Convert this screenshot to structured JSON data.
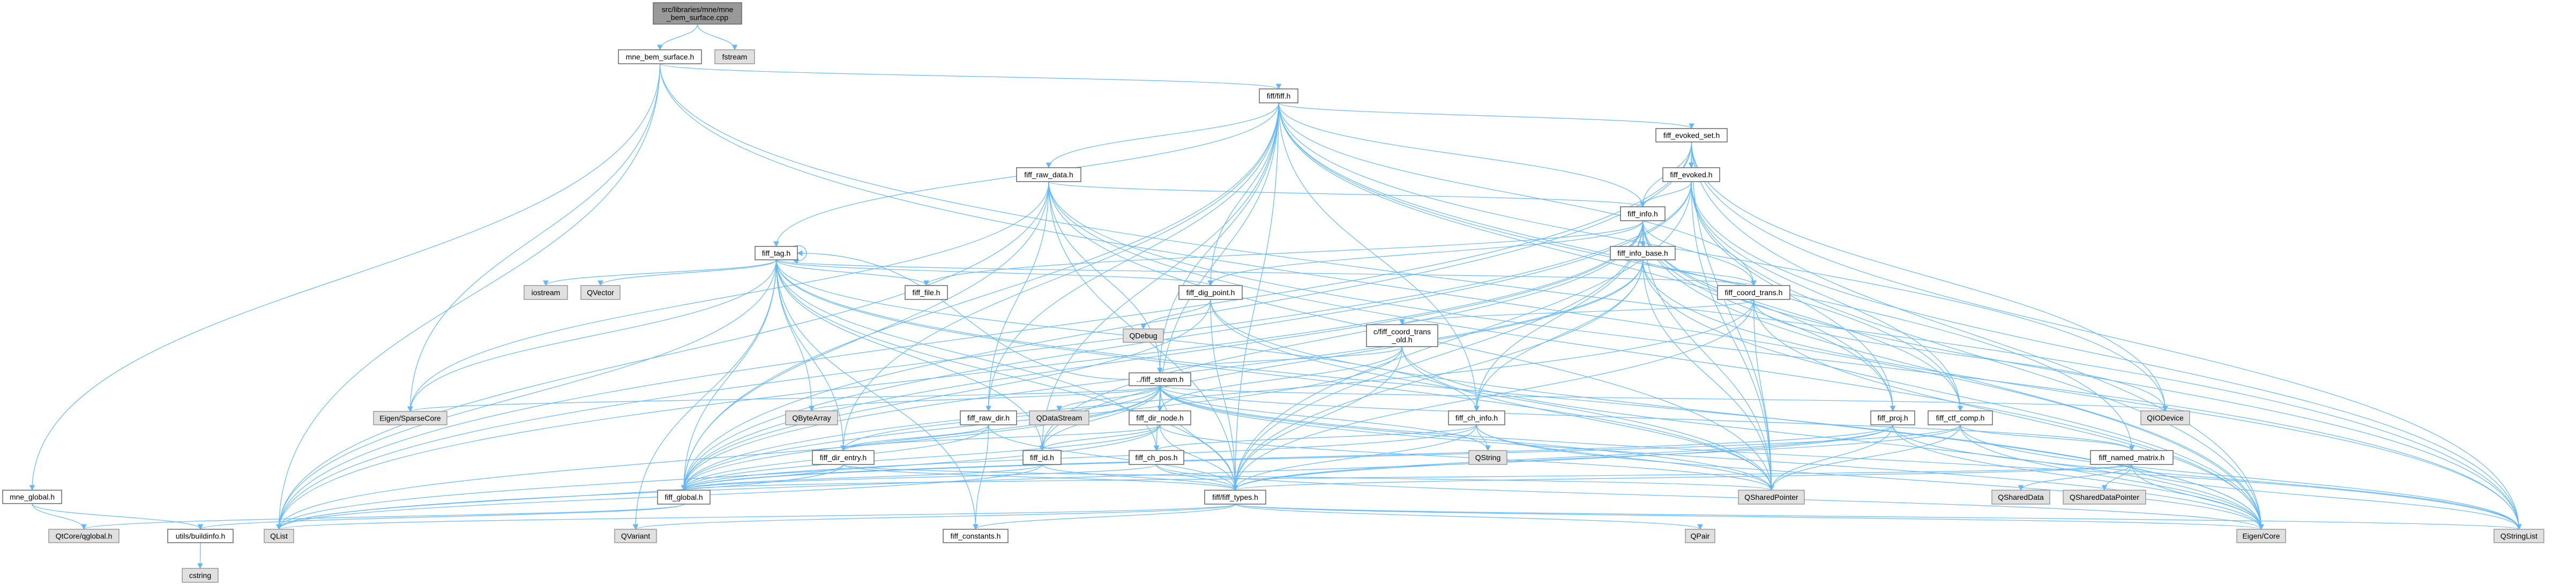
{
  "graph": {
    "edge_color": "#63b8ff",
    "node_styles": {
      "root": {
        "fill": "#999999",
        "stroke": "#666666"
      },
      "internal": {
        "fill": "#ffffff",
        "stroke": "#666666"
      },
      "external": {
        "fill": "#e0e0e0",
        "stroke": "#999999"
      }
    },
    "nodes": [
      {
        "id": "root",
        "kind": "root",
        "lines": [
          "src/libraries/mne/mne",
          "_bem_surface.cpp"
        ]
      },
      {
        "id": "mbs",
        "kind": "internal",
        "lines": [
          "mne_bem_surface.h"
        ]
      },
      {
        "id": "fstream",
        "kind": "external",
        "lines": [
          "fstream"
        ]
      },
      {
        "id": "fiff",
        "kind": "internal",
        "lines": [
          "fiff/fiff.h"
        ]
      },
      {
        "id": "mne_global",
        "kind": "internal",
        "lines": [
          "mne_global.h"
        ]
      },
      {
        "id": "evoked_set",
        "kind": "internal",
        "lines": [
          "fiff_evoked_set.h"
        ]
      },
      {
        "id": "raw_data",
        "kind": "internal",
        "lines": [
          "fiff_raw_data.h"
        ]
      },
      {
        "id": "evoked",
        "kind": "internal",
        "lines": [
          "fiff_evoked.h"
        ]
      },
      {
        "id": "info",
        "kind": "internal",
        "lines": [
          "fiff_info.h"
        ]
      },
      {
        "id": "tag",
        "kind": "internal",
        "lines": [
          "fiff_tag.h"
        ]
      },
      {
        "id": "info_base",
        "kind": "internal",
        "lines": [
          "fiff_info_base.h"
        ]
      },
      {
        "id": "iostream",
        "kind": "external",
        "lines": [
          "iostream"
        ]
      },
      {
        "id": "QVector",
        "kind": "external",
        "lines": [
          "QVector"
        ]
      },
      {
        "id": "file",
        "kind": "internal",
        "lines": [
          "fiff_file.h"
        ]
      },
      {
        "id": "dig_point",
        "kind": "internal",
        "lines": [
          "fiff_dig_point.h"
        ]
      },
      {
        "id": "coord_trans",
        "kind": "internal",
        "lines": [
          "fiff_coord_trans.h"
        ]
      },
      {
        "id": "QDebug",
        "kind": "external",
        "lines": [
          "QDebug"
        ]
      },
      {
        "id": "coord_trans_old",
        "kind": "internal",
        "lines": [
          "c/fiff_coord_trans",
          "_old.h"
        ]
      },
      {
        "id": "stream",
        "kind": "internal",
        "lines": [
          "../fiff_stream.h"
        ]
      },
      {
        "id": "SparseCore",
        "kind": "external",
        "lines": [
          "Eigen/SparseCore"
        ]
      },
      {
        "id": "QByteArray",
        "kind": "external",
        "lines": [
          "QByteArray"
        ]
      },
      {
        "id": "raw_dir",
        "kind": "internal",
        "lines": [
          "fiff_raw_dir.h"
        ]
      },
      {
        "id": "QDataStream",
        "kind": "external",
        "lines": [
          "QDataStream"
        ]
      },
      {
        "id": "dir_node",
        "kind": "internal",
        "lines": [
          "fiff_dir_node.h"
        ]
      },
      {
        "id": "ch_info",
        "kind": "internal",
        "lines": [
          "fiff_ch_info.h"
        ]
      },
      {
        "id": "proj",
        "kind": "internal",
        "lines": [
          "fiff_proj.h"
        ]
      },
      {
        "id": "ctf_comp",
        "kind": "internal",
        "lines": [
          "fiff_ctf_comp.h"
        ]
      },
      {
        "id": "QIODevice",
        "kind": "external",
        "lines": [
          "QIODevice"
        ]
      },
      {
        "id": "dir_entry",
        "kind": "internal",
        "lines": [
          "fiff_dir_entry.h"
        ]
      },
      {
        "id": "id",
        "kind": "internal",
        "lines": [
          "fiff_id.h"
        ]
      },
      {
        "id": "ch_pos",
        "kind": "internal",
        "lines": [
          "fiff_ch_pos.h"
        ]
      },
      {
        "id": "QString",
        "kind": "external",
        "lines": [
          "QString"
        ]
      },
      {
        "id": "named_matrix",
        "kind": "internal",
        "lines": [
          "fiff_named_matrix.h"
        ]
      },
      {
        "id": "global",
        "kind": "internal",
        "lines": [
          "fiff_global.h"
        ]
      },
      {
        "id": "types",
        "kind": "internal",
        "lines": [
          "fiff/fiff_types.h"
        ]
      },
      {
        "id": "QSharedPointer",
        "kind": "external",
        "lines": [
          "QSharedPointer"
        ]
      },
      {
        "id": "QSharedData",
        "kind": "external",
        "lines": [
          "QSharedData"
        ]
      },
      {
        "id": "QSharedDataPointer",
        "kind": "external",
        "lines": [
          "QSharedDataPointer"
        ]
      },
      {
        "id": "qglobal",
        "kind": "external",
        "lines": [
          "QtCore/qglobal.h"
        ]
      },
      {
        "id": "buildinfo",
        "kind": "internal",
        "lines": [
          "utils/buildinfo.h"
        ]
      },
      {
        "id": "QList",
        "kind": "external",
        "lines": [
          "QList"
        ]
      },
      {
        "id": "QVariant",
        "kind": "external",
        "lines": [
          "QVariant"
        ]
      },
      {
        "id": "constants",
        "kind": "internal",
        "lines": [
          "fiff_constants.h"
        ]
      },
      {
        "id": "QPair",
        "kind": "external",
        "lines": [
          "QPair"
        ]
      },
      {
        "id": "EigenCore",
        "kind": "external",
        "lines": [
          "Eigen/Core"
        ]
      },
      {
        "id": "QStringList",
        "kind": "external",
        "lines": [
          "QStringList"
        ]
      },
      {
        "id": "cstring",
        "kind": "external",
        "lines": [
          "cstring"
        ]
      }
    ],
    "edges": [
      [
        "root",
        "mbs"
      ],
      [
        "root",
        "fstream"
      ],
      [
        "mbs",
        "fiff"
      ],
      [
        "mbs",
        "mne_global"
      ],
      [
        "mbs",
        "SparseCore"
      ],
      [
        "mbs",
        "EigenCore"
      ],
      [
        "mbs",
        "QList"
      ],
      [
        "mbs",
        "QStringList"
      ],
      [
        "mne_global",
        "qglobal"
      ],
      [
        "mne_global",
        "buildinfo"
      ],
      [
        "buildinfo",
        "cstring"
      ],
      [
        "fiff",
        "global"
      ],
      [
        "fiff",
        "raw_data"
      ],
      [
        "fiff",
        "evoked_set"
      ],
      [
        "fiff",
        "info"
      ],
      [
        "fiff",
        "tag"
      ],
      [
        "fiff",
        "stream"
      ],
      [
        "fiff",
        "dir_node"
      ],
      [
        "fiff",
        "coord_trans"
      ],
      [
        "fiff",
        "proj"
      ],
      [
        "fiff",
        "ctf_comp"
      ],
      [
        "fiff",
        "named_matrix"
      ],
      [
        "fiff",
        "types"
      ],
      [
        "fiff",
        "id"
      ],
      [
        "fiff",
        "ch_info"
      ],
      [
        "fiff",
        "dig_point"
      ],
      [
        "fiff",
        "raw_dir"
      ],
      [
        "fiff",
        "dir_entry"
      ],
      [
        "fiff",
        "QIODevice"
      ],
      [
        "evoked_set",
        "evoked"
      ],
      [
        "evoked_set",
        "info"
      ],
      [
        "evoked_set",
        "global"
      ],
      [
        "evoked_set",
        "QList"
      ],
      [
        "evoked_set",
        "QStringList"
      ],
      [
        "evoked_set",
        "EigenCore"
      ],
      [
        "evoked_set",
        "QIODevice"
      ],
      [
        "evoked_set",
        "QSharedPointer"
      ],
      [
        "evoked",
        "info"
      ],
      [
        "evoked",
        "global"
      ],
      [
        "evoked",
        "types"
      ],
      [
        "evoked",
        "EigenCore"
      ],
      [
        "evoked",
        "QSharedPointer"
      ],
      [
        "evoked",
        "QList"
      ],
      [
        "evoked",
        "QStringList"
      ],
      [
        "evoked",
        "proj"
      ],
      [
        "evoked",
        "ctf_comp"
      ],
      [
        "raw_data",
        "info"
      ],
      [
        "raw_data",
        "stream"
      ],
      [
        "raw_data",
        "raw_dir"
      ],
      [
        "raw_data",
        "global"
      ],
      [
        "raw_data",
        "types"
      ],
      [
        "raw_data",
        "EigenCore"
      ],
      [
        "raw_data",
        "SparseCore"
      ],
      [
        "raw_data",
        "QList"
      ],
      [
        "raw_data",
        "QStringList"
      ],
      [
        "raw_data",
        "QSharedPointer"
      ],
      [
        "info",
        "info_base"
      ],
      [
        "info",
        "global"
      ],
      [
        "info",
        "types"
      ],
      [
        "info",
        "coord_trans"
      ],
      [
        "info",
        "ch_info"
      ],
      [
        "info",
        "dig_point"
      ],
      [
        "info",
        "ctf_comp"
      ],
      [
        "info",
        "proj"
      ],
      [
        "info",
        "id"
      ],
      [
        "info",
        "file"
      ],
      [
        "info",
        "QList"
      ],
      [
        "info",
        "QSharedPointer"
      ],
      [
        "info",
        "QStringList"
      ],
      [
        "info",
        "EigenCore"
      ],
      [
        "info_base",
        "ch_info"
      ],
      [
        "info_base",
        "id"
      ],
      [
        "info_base",
        "coord_trans"
      ],
      [
        "info_base",
        "types"
      ],
      [
        "info_base",
        "global"
      ],
      [
        "info_base",
        "EigenCore"
      ],
      [
        "info_base",
        "QStringList"
      ],
      [
        "info_base",
        "QSharedPointer"
      ],
      [
        "tag",
        "global"
      ],
      [
        "tag",
        "types"
      ],
      [
        "tag",
        "file"
      ],
      [
        "tag",
        "id"
      ],
      [
        "tag",
        "ch_info"
      ],
      [
        "tag",
        "ch_pos"
      ],
      [
        "tag",
        "dig_point"
      ],
      [
        "tag",
        "dir_entry"
      ],
      [
        "tag",
        "coord_trans"
      ],
      [
        "tag",
        "constants"
      ],
      [
        "tag",
        "QByteArray"
      ],
      [
        "tag",
        "QList"
      ],
      [
        "tag",
        "QVariant"
      ],
      [
        "tag",
        "QVector"
      ],
      [
        "tag",
        "iostream"
      ],
      [
        "tag",
        "SparseCore"
      ],
      [
        "tag",
        "EigenCore"
      ],
      [
        "tag",
        "QSharedPointer"
      ],
      [
        "tag",
        "tag"
      ],
      [
        "dig_point",
        "global"
      ],
      [
        "dig_point",
        "types"
      ],
      [
        "dig_point",
        "QDebug"
      ],
      [
        "dig_point",
        "QSharedPointer"
      ],
      [
        "dig_point",
        "EigenCore"
      ],
      [
        "coord_trans",
        "coord_trans_old"
      ],
      [
        "coord_trans",
        "global"
      ],
      [
        "coord_trans",
        "types"
      ],
      [
        "coord_trans",
        "EigenCore"
      ],
      [
        "coord_trans",
        "QSharedPointer"
      ],
      [
        "coord_trans",
        "QIODevice"
      ],
      [
        "coord_trans_old",
        "stream"
      ],
      [
        "coord_trans_old",
        "types"
      ],
      [
        "coord_trans_old",
        "global"
      ],
      [
        "coord_trans_old",
        "QSharedPointer"
      ],
      [
        "coord_trans_old",
        "EigenCore"
      ],
      [
        "coord_trans_old",
        "dir_node"
      ],
      [
        "stream",
        "QDataStream"
      ],
      [
        "stream",
        "dir_node"
      ],
      [
        "stream",
        "global"
      ],
      [
        "stream",
        "types"
      ],
      [
        "stream",
        "id"
      ],
      [
        "stream",
        "ch_pos"
      ],
      [
        "stream",
        "dir_entry"
      ],
      [
        "stream",
        "tag"
      ],
      [
        "stream",
        "QByteArray"
      ],
      [
        "stream",
        "QIODevice"
      ],
      [
        "stream",
        "QList"
      ],
      [
        "stream",
        "QStringList"
      ],
      [
        "stream",
        "QSharedPointer"
      ],
      [
        "stream",
        "SparseCore"
      ],
      [
        "stream",
        "EigenCore"
      ],
      [
        "stream",
        "named_matrix"
      ],
      [
        "stream",
        "QString"
      ],
      [
        "dir_node",
        "dir_entry"
      ],
      [
        "dir_node",
        "id"
      ],
      [
        "dir_node",
        "global"
      ],
      [
        "dir_node",
        "types"
      ],
      [
        "dir_node",
        "QList"
      ],
      [
        "dir_node",
        "QSharedPointer"
      ],
      [
        "raw_dir",
        "dir_entry"
      ],
      [
        "raw_dir",
        "global"
      ],
      [
        "raw_dir",
        "types"
      ],
      [
        "raw_dir",
        "constants"
      ],
      [
        "ch_info",
        "ch_pos"
      ],
      [
        "ch_info",
        "types"
      ],
      [
        "ch_info",
        "global"
      ],
      [
        "ch_info",
        "QString"
      ],
      [
        "ch_info",
        "EigenCore"
      ],
      [
        "ch_info",
        "QSharedPointer"
      ],
      [
        "ch_pos",
        "types"
      ],
      [
        "ch_pos",
        "global"
      ],
      [
        "ch_pos",
        "EigenCore"
      ],
      [
        "id",
        "global"
      ],
      [
        "id",
        "types"
      ],
      [
        "id",
        "QList"
      ],
      [
        "dir_entry",
        "global"
      ],
      [
        "dir_entry",
        "types"
      ],
      [
        "dir_entry",
        "QSharedPointer"
      ],
      [
        "dir_entry",
        "QList"
      ],
      [
        "proj",
        "global"
      ],
      [
        "proj",
        "types"
      ],
      [
        "proj",
        "EigenCore"
      ],
      [
        "proj",
        "QSharedPointer"
      ],
      [
        "proj",
        "QList"
      ],
      [
        "proj",
        "QStringList"
      ],
      [
        "ctf_comp",
        "named_matrix"
      ],
      [
        "ctf_comp",
        "global"
      ],
      [
        "ctf_comp",
        "types"
      ],
      [
        "ctf_comp",
        "EigenCore"
      ],
      [
        "ctf_comp",
        "QSharedPointer"
      ],
      [
        "ctf_comp",
        "QStringList"
      ],
      [
        "named_matrix",
        "QSharedData"
      ],
      [
        "named_matrix",
        "QSharedDataPointer"
      ],
      [
        "named_matrix",
        "types"
      ],
      [
        "named_matrix",
        "global"
      ],
      [
        "named_matrix",
        "EigenCore"
      ],
      [
        "named_matrix",
        "QStringList"
      ],
      [
        "global",
        "buildinfo"
      ],
      [
        "global",
        "qglobal"
      ],
      [
        "types",
        "constants"
      ],
      [
        "types",
        "QList"
      ],
      [
        "types",
        "QPair"
      ],
      [
        "types",
        "EigenCore"
      ],
      [
        "types",
        "QVariant"
      ],
      [
        "types",
        "QStringList"
      ]
    ]
  }
}
